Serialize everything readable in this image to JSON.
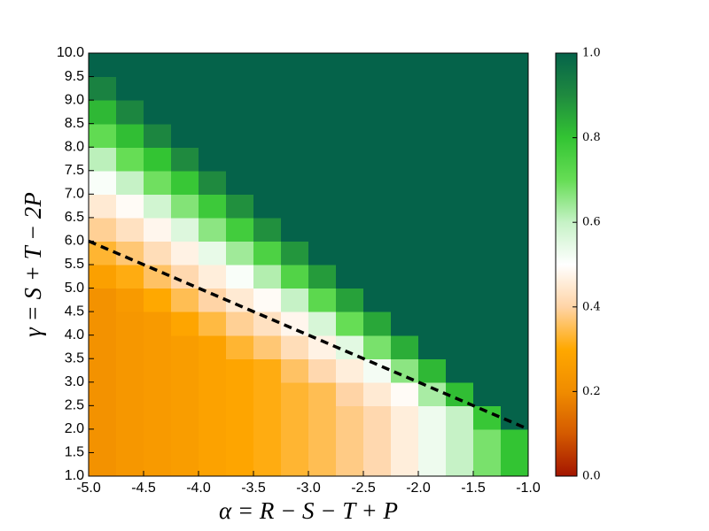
{
  "chart_data": {
    "type": "heatmap",
    "xlabel": "α = R − S − T + P",
    "ylabel": "γ = S + T − 2P",
    "x": [
      -4.875,
      -4.625,
      -4.375,
      -4.125,
      -3.875,
      -3.625,
      -3.375,
      -3.125,
      -2.875,
      -2.625,
      -2.375,
      -2.125,
      -1.875,
      -1.625,
      -1.375,
      -1.125
    ],
    "y": [
      1.25,
      1.75,
      2.25,
      2.75,
      3.25,
      3.75,
      4.25,
      4.75,
      5.25,
      5.75,
      6.25,
      6.75,
      7.25,
      7.75,
      8.25,
      8.75,
      9.25,
      9.75
    ],
    "z": [
      [
        0.22,
        0.24,
        0.25,
        0.26,
        0.28,
        0.29,
        0.31,
        0.33,
        0.35,
        0.38,
        0.41,
        0.46,
        0.53,
        0.6,
        0.68,
        0.8
      ],
      [
        0.22,
        0.24,
        0.25,
        0.26,
        0.28,
        0.29,
        0.31,
        0.33,
        0.35,
        0.38,
        0.41,
        0.46,
        0.53,
        0.6,
        0.68,
        0.8
      ],
      [
        0.22,
        0.24,
        0.25,
        0.26,
        0.28,
        0.29,
        0.31,
        0.33,
        0.35,
        0.38,
        0.41,
        0.46,
        0.53,
        0.6,
        0.79,
        1
      ],
      [
        0.22,
        0.24,
        0.25,
        0.26,
        0.28,
        0.29,
        0.31,
        0.33,
        0.35,
        0.4,
        0.45,
        0.49,
        0.63,
        0.81,
        1,
        1
      ],
      [
        0.22,
        0.24,
        0.25,
        0.26,
        0.28,
        0.29,
        0.31,
        0.36,
        0.41,
        0.46,
        0.52,
        0.66,
        0.82,
        1,
        1,
        1
      ],
      [
        0.22,
        0.24,
        0.25,
        0.26,
        0.28,
        0.33,
        0.37,
        0.42,
        0.47,
        0.55,
        0.68,
        0.84,
        1,
        1,
        1,
        1
      ],
      [
        0.22,
        0.24,
        0.25,
        0.29,
        0.34,
        0.39,
        0.43,
        0.48,
        0.57,
        0.7,
        0.85,
        1,
        1,
        1,
        1,
        1
      ],
      [
        0.22,
        0.25,
        0.3,
        0.35,
        0.4,
        0.45,
        0.49,
        0.6,
        0.72,
        0.86,
        1,
        1,
        1,
        1,
        1,
        1
      ],
      [
        0.27,
        0.31,
        0.36,
        0.41,
        0.46,
        0.51,
        0.62,
        0.74,
        0.87,
        1,
        1,
        1,
        1,
        1,
        1,
        1
      ],
      [
        0.33,
        0.37,
        0.42,
        0.47,
        0.54,
        0.64,
        0.75,
        0.88,
        1,
        1,
        1,
        1,
        1,
        1,
        1,
        1
      ],
      [
        0.39,
        0.43,
        0.48,
        0.56,
        0.66,
        0.77,
        0.89,
        1,
        1,
        1,
        1,
        1,
        1,
        1,
        1,
        1
      ],
      [
        0.45,
        0.49,
        0.58,
        0.67,
        0.78,
        0.89,
        1,
        1,
        1,
        1,
        1,
        1,
        1,
        1,
        1,
        1
      ],
      [
        0.51,
        0.6,
        0.69,
        0.79,
        0.9,
        1,
        1,
        1,
        1,
        1,
        1,
        1,
        1,
        1,
        1,
        1
      ],
      [
        0.61,
        0.7,
        0.8,
        0.9,
        1,
        1,
        1,
        1,
        1,
        1,
        1,
        1,
        1,
        1,
        1,
        1
      ],
      [
        0.71,
        0.81,
        0.91,
        1,
        1,
        1,
        1,
        1,
        1,
        1,
        1,
        1,
        1,
        1,
        1,
        1
      ],
      [
        0.82,
        0.91,
        1,
        1,
        1,
        1,
        1,
        1,
        1,
        1,
        1,
        1,
        1,
        1,
        1,
        1
      ],
      [
        0.92,
        1,
        1,
        1,
        1,
        1,
        1,
        1,
        1,
        1,
        1,
        1,
        1,
        1,
        1,
        1
      ],
      [
        1,
        1,
        1,
        1,
        1,
        1,
        1,
        1,
        1,
        1,
        1,
        1,
        1,
        1,
        1,
        1
      ]
    ],
    "xlim": [
      -5,
      -1
    ],
    "ylim": [
      1,
      10
    ],
    "xticks": [
      {
        "value": -5,
        "label": "-5.0"
      },
      -4.5,
      {
        "value": -4,
        "label": "-4.0"
      },
      -3.5,
      {
        "value": -3,
        "label": "-3.0"
      },
      -2.5,
      {
        "value": -2,
        "label": "-2.0"
      },
      -1.5,
      {
        "value": -1,
        "label": "-1.0"
      }
    ],
    "yticks": [
      {
        "value": 1,
        "label": "1.0"
      },
      1.5,
      {
        "value": 2,
        "label": "2.0"
      },
      2.5,
      {
        "value": 3,
        "label": "3.0"
      },
      3.5,
      {
        "value": 4,
        "label": "4.0"
      },
      4.5,
      {
        "value": 5,
        "label": "5.0"
      },
      5.5,
      {
        "value": 6,
        "label": "6.0"
      },
      6.5,
      {
        "value": 7,
        "label": "7.0"
      },
      7.5,
      {
        "value": 8,
        "label": "8.0"
      },
      8.5,
      {
        "value": 9,
        "label": "9.0"
      },
      9.5,
      {
        "value": 10,
        "label": "10.0"
      }
    ],
    "colormap": [
      {
        "value": 0,
        "color": "#a31500"
      },
      {
        "value": 0.1,
        "color": "#d45a00"
      },
      {
        "value": 0.2,
        "color": "#f08c00"
      },
      {
        "value": 0.3,
        "color": "#ffa800"
      },
      {
        "value": 0.4,
        "color": "#ffd4a6"
      },
      {
        "value": 0.5,
        "color": "#ffffff"
      },
      {
        "value": 0.6,
        "color": "#c6f2c6"
      },
      {
        "value": 0.7,
        "color": "#66dd55"
      },
      {
        "value": 0.8,
        "color": "#33c433"
      },
      {
        "value": 0.9,
        "color": "#1f8a3f"
      },
      {
        "value": 1,
        "color": "#05634a"
      }
    ],
    "colorbar": {
      "lim": [
        0,
        1
      ],
      "ticks": [
        {
          "value": 0,
          "label": "0.0"
        },
        0.2,
        0.4,
        0.6,
        0.8,
        {
          "value": 1,
          "label": "1.0"
        }
      ]
    },
    "line": {
      "x": [
        -5,
        -1
      ],
      "y": [
        6,
        2
      ],
      "color": "#000000",
      "style": "dashed"
    }
  }
}
